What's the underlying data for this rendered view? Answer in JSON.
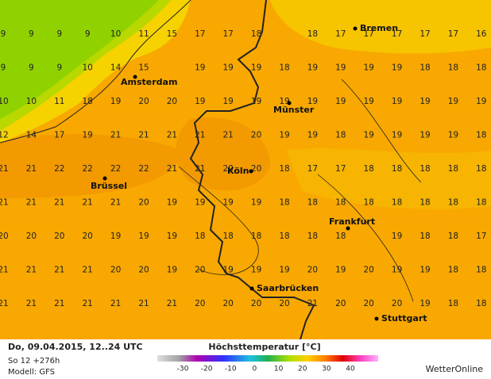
{
  "map": {
    "grid": [
      [
        9,
        9,
        9,
        9,
        10,
        11,
        15,
        17,
        17,
        18,
        null,
        18,
        17,
        17,
        17,
        17,
        17,
        16
      ],
      [
        9,
        9,
        9,
        10,
        14,
        15,
        null,
        19,
        19,
        19,
        18,
        19,
        19,
        19,
        19,
        18,
        18,
        18
      ],
      [
        10,
        10,
        11,
        18,
        19,
        20,
        20,
        19,
        19,
        19,
        19,
        19,
        19,
        19,
        19,
        19,
        19,
        19
      ],
      [
        12,
        14,
        17,
        19,
        21,
        21,
        21,
        21,
        21,
        20,
        19,
        19,
        18,
        19,
        19,
        19,
        19,
        18
      ],
      [
        21,
        21,
        22,
        22,
        22,
        22,
        21,
        21,
        20,
        20,
        18,
        17,
        17,
        18,
        18,
        18,
        18,
        18
      ],
      [
        21,
        21,
        21,
        21,
        21,
        20,
        19,
        19,
        19,
        19,
        18,
        18,
        18,
        18,
        18,
        18,
        18,
        18
      ],
      [
        20,
        20,
        20,
        20,
        19,
        19,
        19,
        18,
        18,
        18,
        18,
        18,
        18,
        null,
        19,
        18,
        18,
        17
      ],
      [
        21,
        21,
        21,
        21,
        20,
        20,
        19,
        20,
        19,
        19,
        19,
        20,
        19,
        20,
        19,
        19,
        18,
        18
      ],
      [
        21,
        21,
        21,
        21,
        21,
        21,
        21,
        20,
        20,
        20,
        20,
        21,
        20,
        20,
        20,
        19,
        18,
        18
      ]
    ],
    "cities": [
      "Bremen",
      "Amsterdam",
      "Münster",
      "Brüssel",
      "Köln",
      "Frankfurt",
      "Saarbrücken",
      "Stuttgart"
    ]
  },
  "footer": {
    "date": "Do, 09.04.2015, 12..24 UTC",
    "run": "So 12 +276h",
    "model": "Modell: GFS",
    "brand": "WetterOnline"
  },
  "legend": {
    "title": "Höchsttemperatur [°C]",
    "ticks": [
      -30,
      -20,
      -10,
      0,
      10,
      20,
      30,
      40
    ]
  }
}
